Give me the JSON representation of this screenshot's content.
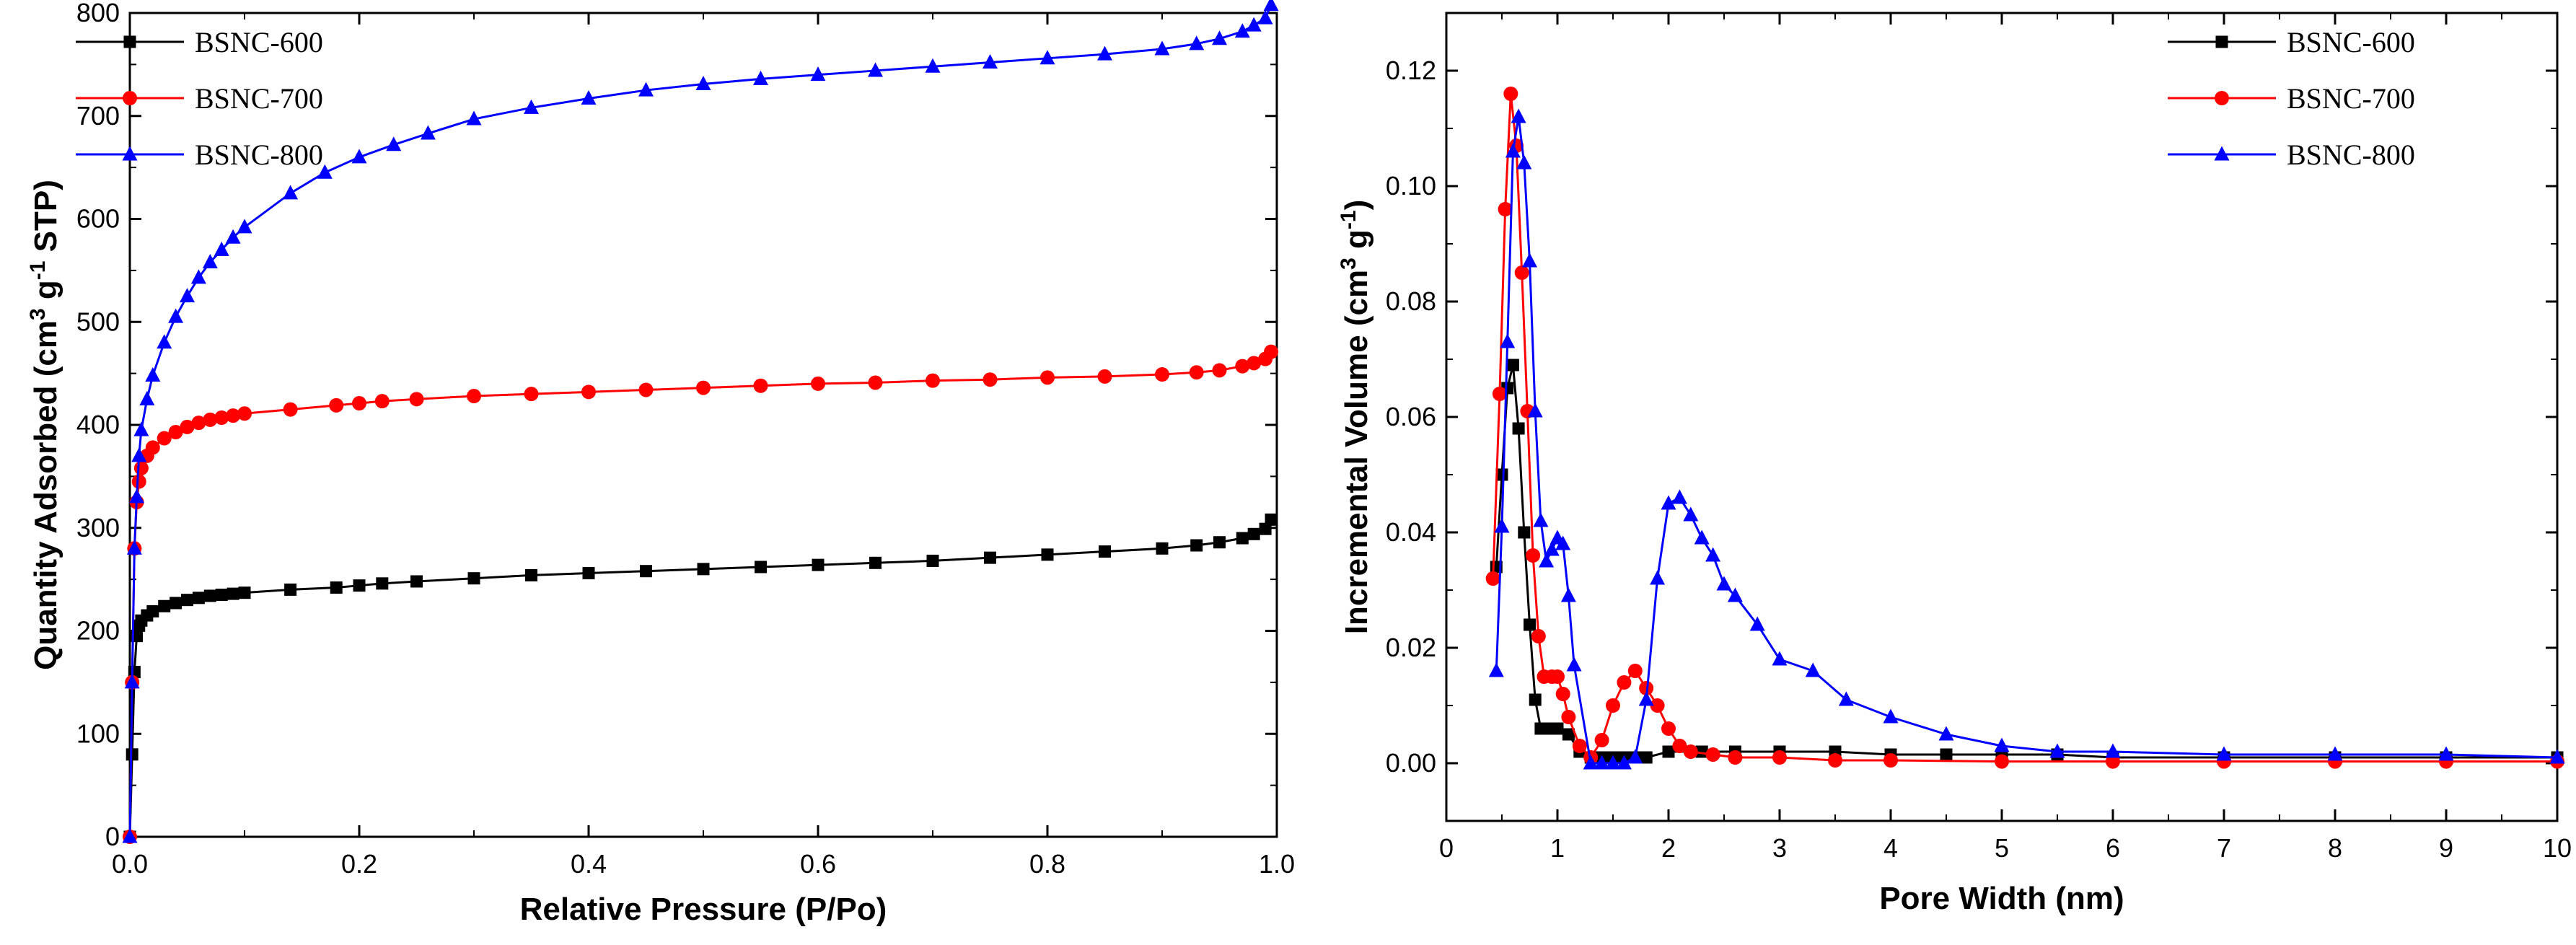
{
  "colors": {
    "BSNC-600": "#000000",
    "BSNC-700": "#ff0000",
    "BSNC-800": "#0000ff"
  },
  "chart_data": [
    {
      "type": "line",
      "title": "",
      "xlabel": "Relative Pressure (P/Po)",
      "ylabel": "Quantity Adsorbed (cm3 g-1 STP)",
      "ylabel_parts": {
        "pre": "Quantity Adsorbed (cm",
        "sup1": "3",
        "mid": " g",
        "sup2": "-1",
        "post": " STP)"
      },
      "xlim": [
        0,
        1.0
      ],
      "ylim": [
        0,
        800
      ],
      "xticks": [
        "0.0",
        "0.2",
        "0.4",
        "0.6",
        "0.8",
        "1.0"
      ],
      "yticks": [
        "0",
        "100",
        "200",
        "300",
        "400",
        "500",
        "600",
        "700",
        "800"
      ],
      "legend_position": "top-left",
      "series": [
        {
          "name": "BSNC-600",
          "marker": "square",
          "x": [
            0.0,
            0.002,
            0.004,
            0.006,
            0.008,
            0.01,
            0.015,
            0.02,
            0.03,
            0.04,
            0.05,
            0.06,
            0.07,
            0.08,
            0.09,
            0.1,
            0.14,
            0.18,
            0.2,
            0.22,
            0.25,
            0.3,
            0.35,
            0.4,
            0.45,
            0.5,
            0.55,
            0.6,
            0.65,
            0.7,
            0.75,
            0.8,
            0.85,
            0.9,
            0.93,
            0.95,
            0.97,
            0.98,
            0.99,
            0.995
          ],
          "y": [
            0,
            80,
            160,
            195,
            205,
            210,
            215,
            219,
            224,
            227,
            230,
            232,
            234,
            235,
            236,
            237,
            240,
            242,
            244,
            246,
            248,
            251,
            254,
            256,
            258,
            260,
            262,
            264,
            266,
            268,
            271,
            274,
            277,
            280,
            283,
            286,
            290,
            294,
            299,
            308
          ]
        },
        {
          "name": "BSNC-700",
          "marker": "circle",
          "x": [
            0.0,
            0.002,
            0.004,
            0.006,
            0.008,
            0.01,
            0.015,
            0.02,
            0.03,
            0.04,
            0.05,
            0.06,
            0.07,
            0.08,
            0.09,
            0.1,
            0.14,
            0.18,
            0.2,
            0.22,
            0.25,
            0.3,
            0.35,
            0.4,
            0.45,
            0.5,
            0.55,
            0.6,
            0.65,
            0.7,
            0.75,
            0.8,
            0.85,
            0.9,
            0.93,
            0.95,
            0.97,
            0.98,
            0.99,
            0.995
          ],
          "y": [
            0,
            150,
            280,
            325,
            345,
            358,
            370,
            378,
            387,
            393,
            398,
            402,
            405,
            407,
            409,
            411,
            415,
            419,
            421,
            423,
            425,
            428,
            430,
            432,
            434,
            436,
            438,
            440,
            441,
            443,
            444,
            446,
            447,
            449,
            451,
            453,
            457,
            460,
            464,
            471
          ]
        },
        {
          "name": "BSNC-800",
          "marker": "triangle",
          "x": [
            0.0,
            0.002,
            0.004,
            0.006,
            0.008,
            0.01,
            0.015,
            0.02,
            0.03,
            0.04,
            0.05,
            0.06,
            0.07,
            0.08,
            0.09,
            0.1,
            0.14,
            0.17,
            0.2,
            0.23,
            0.26,
            0.3,
            0.35,
            0.4,
            0.45,
            0.5,
            0.55,
            0.6,
            0.65,
            0.7,
            0.75,
            0.8,
            0.85,
            0.9,
            0.93,
            0.95,
            0.97,
            0.98,
            0.99,
            0.995
          ],
          "y": [
            0,
            150,
            280,
            330,
            370,
            395,
            425,
            448,
            480,
            505,
            525,
            543,
            558,
            570,
            582,
            592,
            625,
            645,
            660,
            672,
            683,
            697,
            708,
            717,
            725,
            731,
            736,
            740,
            744,
            748,
            752,
            756,
            760,
            765,
            770,
            775,
            782,
            788,
            795,
            808
          ]
        }
      ]
    },
    {
      "type": "line",
      "title": "",
      "xlabel": "Pore Width (nm)",
      "ylabel": "Incremental Volume (cm3 g-1)",
      "ylabel_parts": {
        "pre": "Incremental Volume (cm",
        "sup1": "3",
        "mid": " g",
        "sup2": "-1",
        "post": ")"
      },
      "xlim": [
        0,
        10
      ],
      "ylim": [
        -0.01,
        0.13
      ],
      "xticks": [
        "0",
        "1",
        "2",
        "3",
        "4",
        "5",
        "6",
        "7",
        "8",
        "9",
        "10"
      ],
      "yticks": [
        "0.00",
        "0.02",
        "0.04",
        "0.06",
        "0.08",
        "0.10",
        "0.12"
      ],
      "legend_position": "top-right",
      "series": [
        {
          "name": "BSNC-600",
          "marker": "square",
          "x": [
            0.45,
            0.5,
            0.55,
            0.6,
            0.65,
            0.7,
            0.75,
            0.8,
            0.85,
            0.9,
            1.0,
            1.1,
            1.2,
            1.3,
            1.4,
            1.5,
            1.6,
            1.7,
            1.8,
            2.0,
            2.3,
            2.6,
            3.0,
            3.5,
            4.0,
            4.5,
            5.0,
            5.5,
            6.0,
            7.0,
            8.0,
            9.0,
            10.0
          ],
          "y": [
            0.034,
            0.05,
            0.065,
            0.069,
            0.058,
            0.04,
            0.024,
            0.011,
            0.006,
            0.006,
            0.006,
            0.005,
            0.002,
            0.001,
            0.001,
            0.001,
            0.001,
            0.001,
            0.001,
            0.002,
            0.002,
            0.002,
            0.002,
            0.002,
            0.0015,
            0.0015,
            0.0015,
            0.0015,
            0.001,
            0.001,
            0.001,
            0.001,
            0.001
          ]
        },
        {
          "name": "BSNC-700",
          "marker": "circle",
          "x": [
            0.42,
            0.48,
            0.53,
            0.58,
            0.63,
            0.68,
            0.73,
            0.78,
            0.83,
            0.88,
            0.95,
            1.0,
            1.05,
            1.1,
            1.2,
            1.3,
            1.4,
            1.5,
            1.6,
            1.7,
            1.8,
            1.9,
            2.0,
            2.1,
            2.2,
            2.4,
            2.6,
            3.0,
            3.5,
            4.0,
            5.0,
            6.0,
            7.0,
            8.0,
            9.0,
            10.0
          ],
          "y": [
            0.032,
            0.064,
            0.096,
            0.116,
            0.107,
            0.085,
            0.061,
            0.036,
            0.022,
            0.015,
            0.015,
            0.015,
            0.012,
            0.008,
            0.003,
            0.001,
            0.004,
            0.01,
            0.014,
            0.016,
            0.013,
            0.01,
            0.006,
            0.003,
            0.002,
            0.0015,
            0.001,
            0.001,
            0.0005,
            0.0005,
            0.0003,
            0.0003,
            0.0003,
            0.0003,
            0.0003,
            0.0003
          ]
        },
        {
          "name": "BSNC-800",
          "marker": "triangle",
          "x": [
            0.45,
            0.5,
            0.55,
            0.6,
            0.65,
            0.7,
            0.75,
            0.8,
            0.85,
            0.9,
            0.95,
            1.0,
            1.05,
            1.1,
            1.15,
            1.3,
            1.4,
            1.5,
            1.6,
            1.7,
            1.8,
            1.9,
            2.0,
            2.1,
            2.2,
            2.3,
            2.4,
            2.5,
            2.6,
            2.8,
            3.0,
            3.3,
            3.6,
            4.0,
            4.5,
            5.0,
            5.5,
            6.0,
            7.0,
            8.0,
            9.0,
            10.0
          ],
          "y": [
            0.016,
            0.041,
            0.073,
            0.106,
            0.112,
            0.104,
            0.087,
            0.061,
            0.042,
            0.035,
            0.037,
            0.039,
            0.038,
            0.029,
            0.017,
            0.0,
            0.0,
            0.0,
            0.0,
            0.001,
            0.011,
            0.032,
            0.045,
            0.046,
            0.043,
            0.039,
            0.036,
            0.031,
            0.029,
            0.024,
            0.018,
            0.016,
            0.011,
            0.008,
            0.005,
            0.003,
            0.002,
            0.002,
            0.0015,
            0.0015,
            0.0015,
            0.001
          ]
        }
      ]
    }
  ]
}
